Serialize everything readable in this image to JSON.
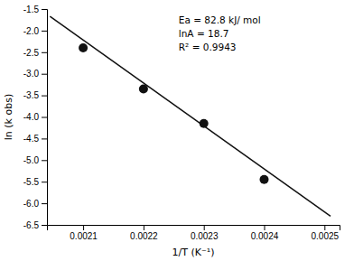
{
  "chart_data": {
    "type": "scatter",
    "xlabel": "1/T (K⁻¹)",
    "ylabel": "ln (k obs)",
    "series": [
      {
        "type": "line",
        "color": "#111111",
        "x": [
          0.002045,
          0.00251
        ],
        "values": [
          -1.6682,
          -6.2996
        ]
      },
      {
        "type": "scatter",
        "color": "#111111",
        "x": [
          0.0021,
          0.0022,
          0.0023,
          0.0024
        ],
        "values": [
          -2.4,
          -3.35,
          -4.15,
          -5.45
        ]
      }
    ],
    "xlim": [
      0.00204,
      0.002525
    ],
    "ylim": [
      -6.5,
      -1.5
    ],
    "xticks": [
      0.0021,
      0.0022,
      0.0023,
      0.0024,
      0.0025
    ],
    "yticks": [
      -6.5,
      {
        "value": -6.0,
        "label": "-6.0"
      },
      -5.5,
      {
        "value": -5.0,
        "label": "-5.0"
      },
      -4.5,
      {
        "value": -4.0,
        "label": "-4.0"
      },
      -3.5,
      {
        "value": -3.0,
        "label": "-3.0"
      },
      -2.5,
      {
        "value": -2.0,
        "label": "-2.0"
      },
      -1.5
    ],
    "annotations": [
      "Ea = 82.8 kJ/ mol",
      "lnA = 18.7",
      "R² = 0.9943"
    ]
  }
}
